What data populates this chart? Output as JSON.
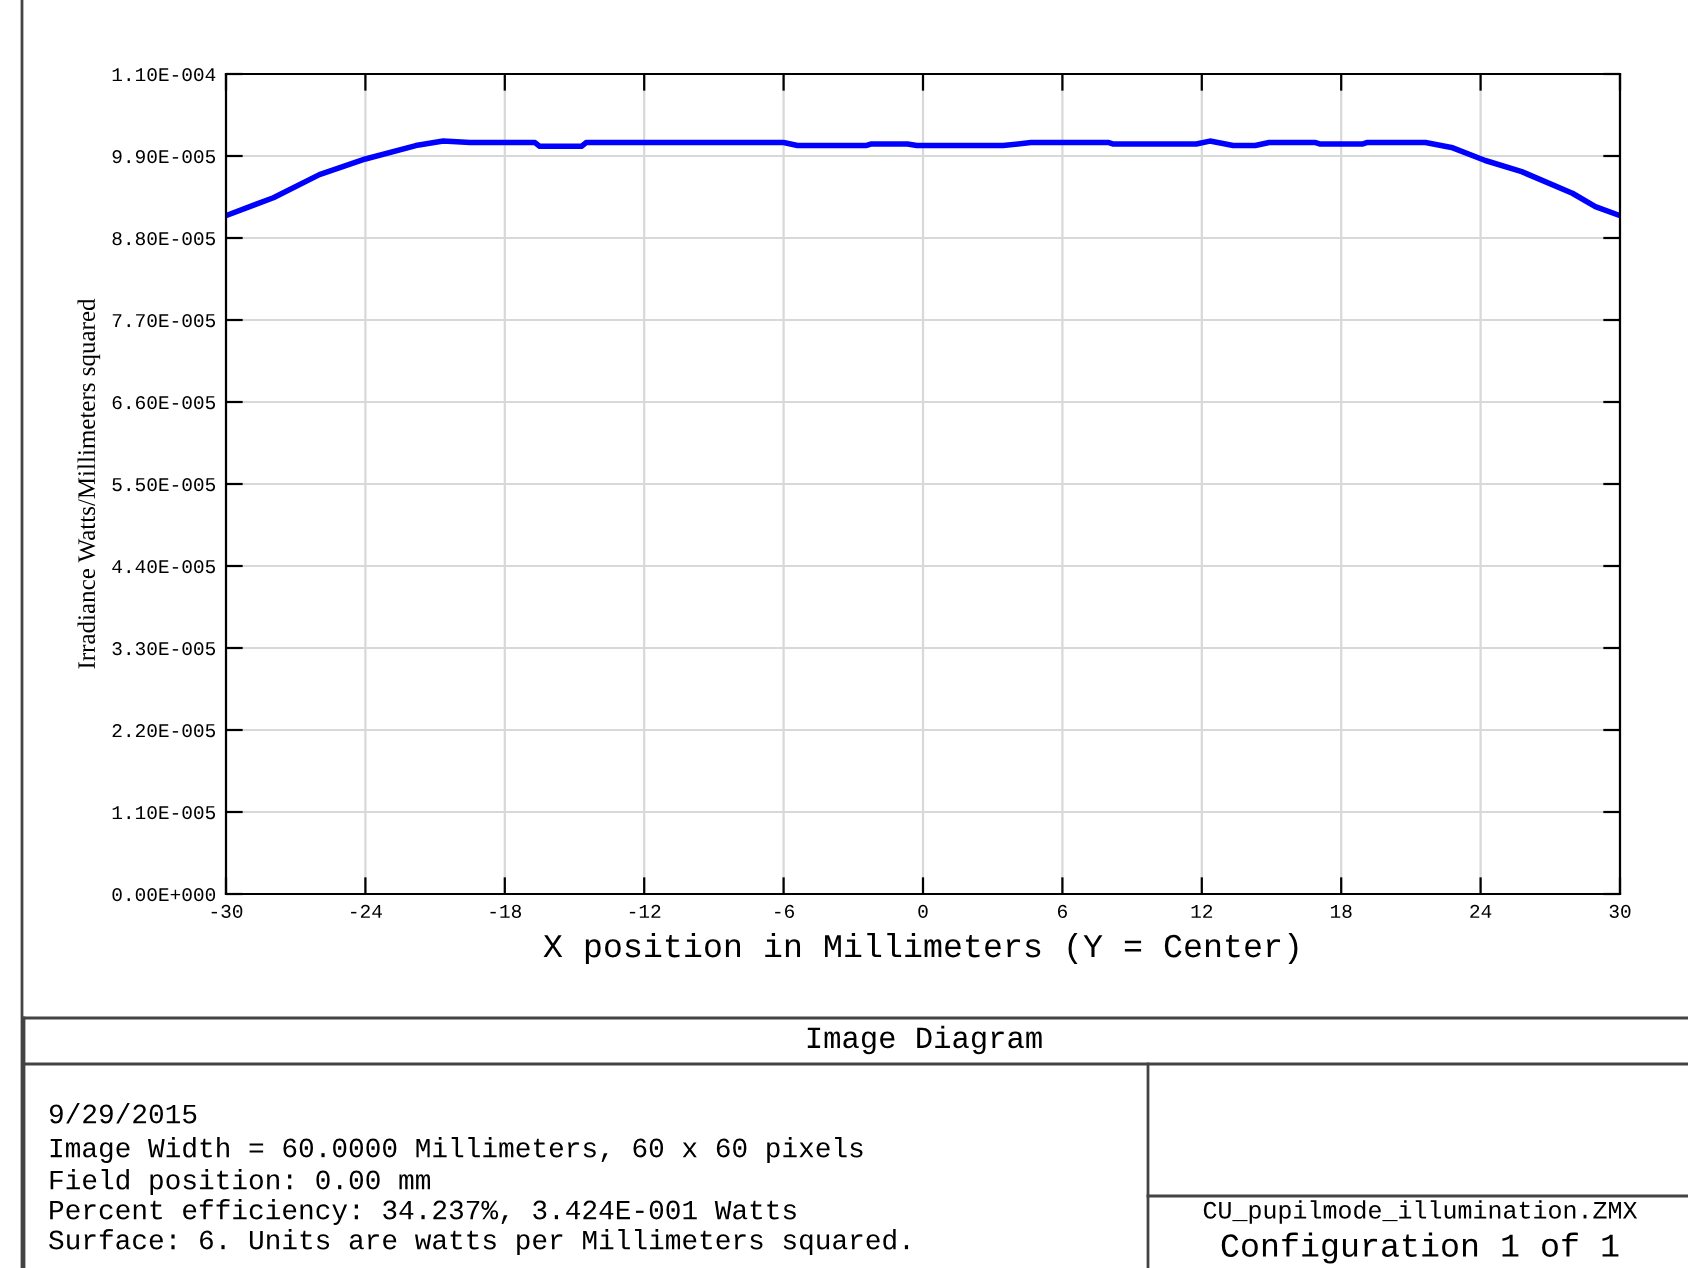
{
  "chart_data": {
    "type": "line",
    "title": "Image Diagram",
    "xlabel": "X position in Millimeters (Y = Center)",
    "ylabel": "Irradiance Watts/Millimeters squared",
    "x": [
      -30,
      -27.96,
      -25.98,
      -24.0,
      -21.83,
      -20.65,
      -19.5,
      -16.7,
      -16.5,
      -14.7,
      -14.5,
      -6.0,
      -5.4,
      -2.46,
      -2.25,
      -0.67,
      -0.27,
      3.45,
      4.64,
      8.0,
      8.2,
      11.76,
      12.35,
      13.35,
      14.3,
      14.9,
      16.9,
      17.1,
      18.9,
      19.1,
      21.63,
      22.8,
      24.2,
      25.77,
      27.95,
      28.94,
      30
    ],
    "series": [
      {
        "color": "#0000ff",
        "values": [
          9.1e-05,
          9.34e-05,
          9.65e-05,
          9.86e-05,
          0.0001004,
          0.000101,
          0.0001008,
          0.0001008,
          0.0001003,
          0.0001003,
          0.0001008,
          0.0001008,
          0.0001004,
          0.0001004,
          0.0001006,
          0.0001006,
          0.0001004,
          0.0001004,
          0.0001008,
          0.0001008,
          0.0001006,
          0.0001006,
          0.000101,
          0.0001004,
          0.0001004,
          0.0001008,
          0.0001008,
          0.0001006,
          0.0001006,
          0.0001008,
          0.0001008,
          0.0001001,
          9.84e-05,
          9.69e-05,
          9.4e-05,
          9.22e-05,
          9.1e-05
        ]
      }
    ],
    "xlim": [
      -30,
      30
    ],
    "xticks": [
      -30,
      -24,
      -18,
      -12,
      -6,
      0,
      6,
      12,
      18,
      24,
      30
    ],
    "ylim": [
      0,
      0.00011
    ],
    "yticks": [
      {
        "value": 0,
        "label": "0.00E+000"
      },
      {
        "value": 1.1e-05,
        "label": "1.10E-005"
      },
      {
        "value": 2.2e-05,
        "label": "2.20E-005"
      },
      {
        "value": 3.3e-05,
        "label": "3.30E-005"
      },
      {
        "value": 4.4e-05,
        "label": "4.40E-005"
      },
      {
        "value": 5.5e-05,
        "label": "5.50E-005"
      },
      {
        "value": 6.6e-05,
        "label": "6.60E-005"
      },
      {
        "value": 7.7e-05,
        "label": "7.70E-005"
      },
      {
        "value": 8.8e-05,
        "label": "8.80E-005"
      },
      {
        "value": 9.9e-05,
        "label": "9.90E-005"
      },
      {
        "value": 0.00011,
        "label": "1.10E-004"
      }
    ],
    "grid": true,
    "marker": "none",
    "line_style": "solid",
    "annotations": [
      "9/29/2015",
      "Image Width = 60.0000 Millimeters, 60 x 60 pixels",
      "Field position: 0.00 mm",
      "Percent efficiency: 34.237%, 3.424E-001 Watts",
      "Surface: 6. Units are watts per Millimeters squared.",
      "CU_pupilmode_illumination.ZMX",
      "Configuration 1 of 1"
    ]
  }
}
